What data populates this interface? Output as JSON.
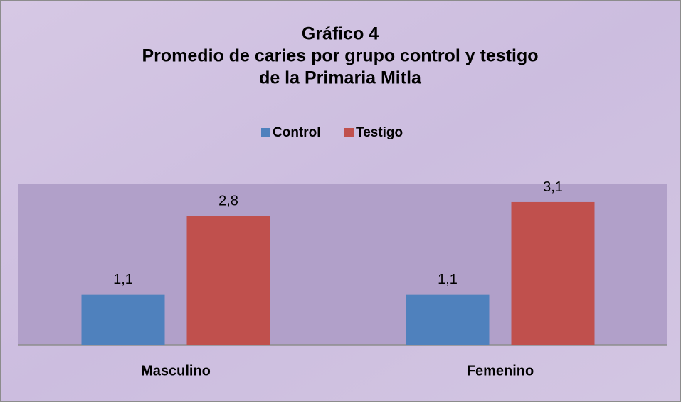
{
  "chart_data": {
    "type": "bar",
    "title": [
      "Gráfico 4",
      "Promedio de caries por grupo control y testigo",
      "de la Primaria Mitla"
    ],
    "categories": [
      "Masculino",
      "Femenino"
    ],
    "series": [
      {
        "name": "Control",
        "color": "#4f81bd",
        "values": [
          1.1,
          1.1
        ],
        "value_labels": [
          "1,1",
          "1,1"
        ]
      },
      {
        "name": "Testigo",
        "color": "#c0504d",
        "values": [
          2.8,
          3.1
        ],
        "value_labels": [
          "2,8",
          "3,1"
        ]
      }
    ],
    "ylim": [
      0,
      3.5
    ],
    "legend": "top"
  }
}
